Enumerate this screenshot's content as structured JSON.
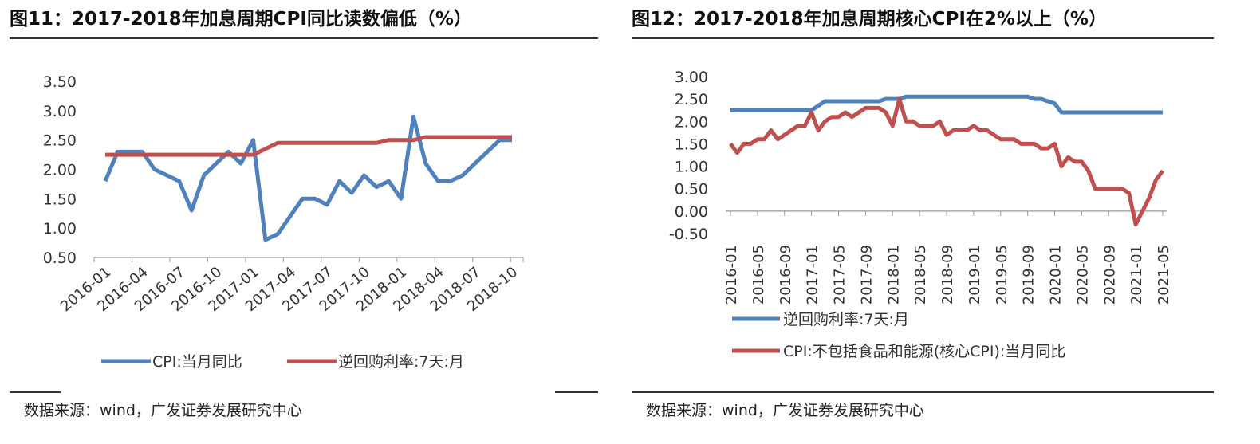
{
  "panels": [
    {
      "title": "图11：2017-2018年加息周期CPI同比读数偏低（%）",
      "source": "数据来源：wind，广发证券发展研究中心",
      "chart_data": {
        "type": "line",
        "title": "",
        "xlabel": "",
        "ylabel": "",
        "ylim": [
          0.5,
          3.5
        ],
        "y_ticks": [
          "3.50",
          "3.00",
          "2.50",
          "2.00",
          "1.50",
          "1.00",
          "0.50"
        ],
        "x_tick_labels": [
          "2016-01",
          "2016-04",
          "2016-07",
          "2016-10",
          "2017-01",
          "2017-04",
          "2017-07",
          "2017-10",
          "2018-01",
          "2018-04",
          "2018-07",
          "2018-10"
        ],
        "x": [
          "2016-01",
          "2016-02",
          "2016-03",
          "2016-04",
          "2016-05",
          "2016-06",
          "2016-07",
          "2016-08",
          "2016-09",
          "2016-10",
          "2016-11",
          "2016-12",
          "2017-01",
          "2017-02",
          "2017-03",
          "2017-04",
          "2017-05",
          "2017-06",
          "2017-07",
          "2017-08",
          "2017-09",
          "2017-10",
          "2017-11",
          "2017-12",
          "2018-01",
          "2018-02",
          "2018-03",
          "2018-04",
          "2018-05",
          "2018-06",
          "2018-07",
          "2018-08",
          "2018-09",
          "2018-10"
        ],
        "legend_position": "bottom",
        "grid": false,
        "series": [
          {
            "name": "CPI:当月同比",
            "color": "#4f81bd",
            "values": [
              1.8,
              2.3,
              2.3,
              2.3,
              2.0,
              1.9,
              1.8,
              1.3,
              1.9,
              2.1,
              2.3,
              2.1,
              2.5,
              0.8,
              0.9,
              1.2,
              1.5,
              1.5,
              1.4,
              1.8,
              1.6,
              1.9,
              1.7,
              1.8,
              1.5,
              2.9,
              2.1,
              1.8,
              1.8,
              1.9,
              2.1,
              2.3,
              2.5,
              2.5
            ]
          },
          {
            "name": "逆回购利率:7天:月",
            "color": "#c0504d",
            "values": [
              2.25,
              2.25,
              2.25,
              2.25,
              2.25,
              2.25,
              2.25,
              2.25,
              2.25,
              2.25,
              2.25,
              2.25,
              2.25,
              2.35,
              2.45,
              2.45,
              2.45,
              2.45,
              2.45,
              2.45,
              2.45,
              2.45,
              2.45,
              2.5,
              2.5,
              2.5,
              2.55,
              2.55,
              2.55,
              2.55,
              2.55,
              2.55,
              2.55,
              2.55
            ]
          }
        ]
      }
    },
    {
      "title": "图12：2017-2018年加息周期核心CPI在2%以上（%）",
      "source": "数据来源：wind，广发证券发展研究中心",
      "chart_data": {
        "type": "line",
        "title": "",
        "xlabel": "",
        "ylabel": "",
        "ylim": [
          -0.5,
          3.0
        ],
        "y_ticks": [
          "3.00",
          "2.50",
          "2.00",
          "1.50",
          "1.00",
          "0.50",
          "0.00",
          "-0.50"
        ],
        "x_tick_labels": [
          "2016-01",
          "2016-05",
          "2016-09",
          "2017-01",
          "2017-05",
          "2017-09",
          "2018-01",
          "2018-05",
          "2018-09",
          "2019-01",
          "2019-05",
          "2019-09",
          "2020-01",
          "2020-05",
          "2020-09",
          "2021-01",
          "2021-05"
        ],
        "x_start": "2016-01",
        "x_end": "2021-05",
        "legend_position": "bottom",
        "grid": false,
        "series": [
          {
            "name": "逆回购利率:7天:月",
            "color": "#4f81bd",
            "values": [
              2.25,
              2.25,
              2.25,
              2.25,
              2.25,
              2.25,
              2.25,
              2.25,
              2.25,
              2.25,
              2.25,
              2.25,
              2.25,
              2.35,
              2.45,
              2.45,
              2.45,
              2.45,
              2.45,
              2.45,
              2.45,
              2.45,
              2.45,
              2.5,
              2.5,
              2.5,
              2.55,
              2.55,
              2.55,
              2.55,
              2.55,
              2.55,
              2.55,
              2.55,
              2.55,
              2.55,
              2.55,
              2.55,
              2.55,
              2.55,
              2.55,
              2.55,
              2.55,
              2.55,
              2.55,
              2.5,
              2.5,
              2.45,
              2.4,
              2.2,
              2.2,
              2.2,
              2.2,
              2.2,
              2.2,
              2.2,
              2.2,
              2.2,
              2.2,
              2.2,
              2.2,
              2.2,
              2.2,
              2.2,
              2.2
            ]
          },
          {
            "name": "CPI:不包括食品和能源(核心CPI):当月同比",
            "color": "#c0504d",
            "values": [
              1.5,
              1.3,
              1.5,
              1.5,
              1.6,
              1.6,
              1.8,
              1.6,
              1.7,
              1.8,
              1.9,
              1.9,
              2.2,
              1.8,
              2.0,
              2.1,
              2.1,
              2.2,
              2.1,
              2.2,
              2.3,
              2.3,
              2.3,
              2.2,
              1.9,
              2.5,
              2.0,
              2.0,
              1.9,
              1.9,
              1.9,
              2.0,
              1.7,
              1.8,
              1.8,
              1.8,
              1.9,
              1.8,
              1.8,
              1.7,
              1.6,
              1.6,
              1.6,
              1.5,
              1.5,
              1.5,
              1.4,
              1.4,
              1.5,
              1.0,
              1.2,
              1.1,
              1.1,
              0.9,
              0.5,
              0.5,
              0.5,
              0.5,
              0.5,
              0.4,
              -0.3,
              0.0,
              0.3,
              0.7,
              0.9
            ]
          }
        ]
      }
    }
  ]
}
